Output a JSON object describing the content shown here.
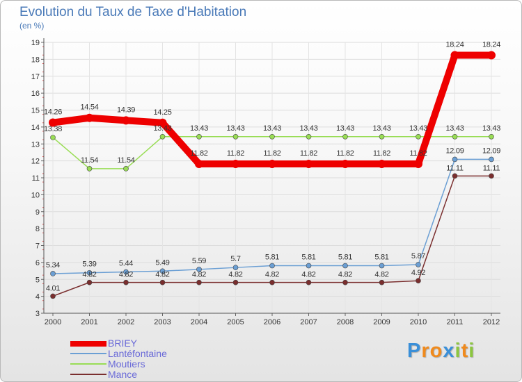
{
  "chart_data": {
    "type": "line",
    "title": "Evolution du Taux de Taxe d'Habitation",
    "subtitle": "(en %)",
    "categories": [
      "2000",
      "2001",
      "2002",
      "2003",
      "2004",
      "2005",
      "2006",
      "2007",
      "2008",
      "2009",
      "2010",
      "2011",
      "2012"
    ],
    "ylim": [
      3,
      19
    ],
    "yticks": [
      "3",
      "4",
      "5",
      "6",
      "7",
      "8",
      "9",
      "10",
      "11",
      "12",
      "13",
      "14",
      "15",
      "16",
      "17",
      "18",
      "19"
    ],
    "series": [
      {
        "name": "BRIEY",
        "color": "#ee0000",
        "values": [
          14.26,
          14.54,
          14.39,
          14.25,
          11.82,
          11.82,
          11.82,
          11.82,
          11.82,
          11.82,
          11.82,
          18.24,
          18.24
        ],
        "labels": [
          "14.26",
          "14.54",
          "14.39",
          "14.25",
          "11.82",
          "11.82",
          "11.82",
          "11.82",
          "11.82",
          "11.82",
          "11.82",
          "18.24",
          "18.24"
        ]
      },
      {
        "name": "Lantéfontaine",
        "color": "#6b9fd4",
        "values": [
          5.34,
          5.39,
          5.44,
          5.49,
          5.59,
          5.7,
          5.81,
          5.81,
          5.81,
          5.81,
          5.87,
          12.09,
          12.09
        ],
        "labels": [
          "5.34",
          "5.39",
          "5.44",
          "5.49",
          "5.59",
          "5.7",
          "5.81",
          "5.81",
          "5.81",
          "5.81",
          "5.87",
          "12.09",
          "12.09"
        ]
      },
      {
        "name": "Moutiers",
        "color": "#99dd55",
        "values": [
          13.38,
          11.54,
          11.54,
          13.43,
          13.43,
          13.43,
          13.43,
          13.43,
          13.43,
          13.43,
          13.43,
          13.43,
          13.43
        ],
        "labels": [
          "13.38",
          "11.54",
          "11.54",
          "13.43",
          "13.43",
          "13.43",
          "13.43",
          "13.43",
          "13.43",
          "13.43",
          "13.43",
          "13.43",
          "13.43"
        ]
      },
      {
        "name": "Mance",
        "color": "#7a2e2e",
        "values": [
          4.01,
          4.82,
          4.82,
          4.82,
          4.82,
          4.82,
          4.82,
          4.82,
          4.82,
          4.82,
          4.92,
          11.11,
          11.11
        ],
        "labels": [
          "4.01",
          "4.82",
          "4.82",
          "4.82",
          "4.82",
          "4.82",
          "4.82",
          "4.82",
          "4.82",
          "4.82",
          "4.92",
          "11.11",
          "11.11"
        ]
      }
    ],
    "legend_position": "bottom-left"
  },
  "legend": {
    "items": [
      {
        "label": "BRIEY",
        "color": "#ee0000"
      },
      {
        "label": "Lantéfontaine",
        "color": "#6b9fd4"
      },
      {
        "label": "Moutiers",
        "color": "#99dd55"
      },
      {
        "label": "Mance",
        "color": "#7a2e2e"
      }
    ]
  },
  "brand": {
    "letters": [
      "P",
      "r",
      "o",
      "x",
      "i",
      "t",
      "i"
    ],
    "colors": [
      "#3a8fd8",
      "#f08a1c",
      "#f08a1c",
      "#3a8fd8",
      "#8cc63f",
      "#f08a1c",
      "#8cc63f"
    ]
  }
}
